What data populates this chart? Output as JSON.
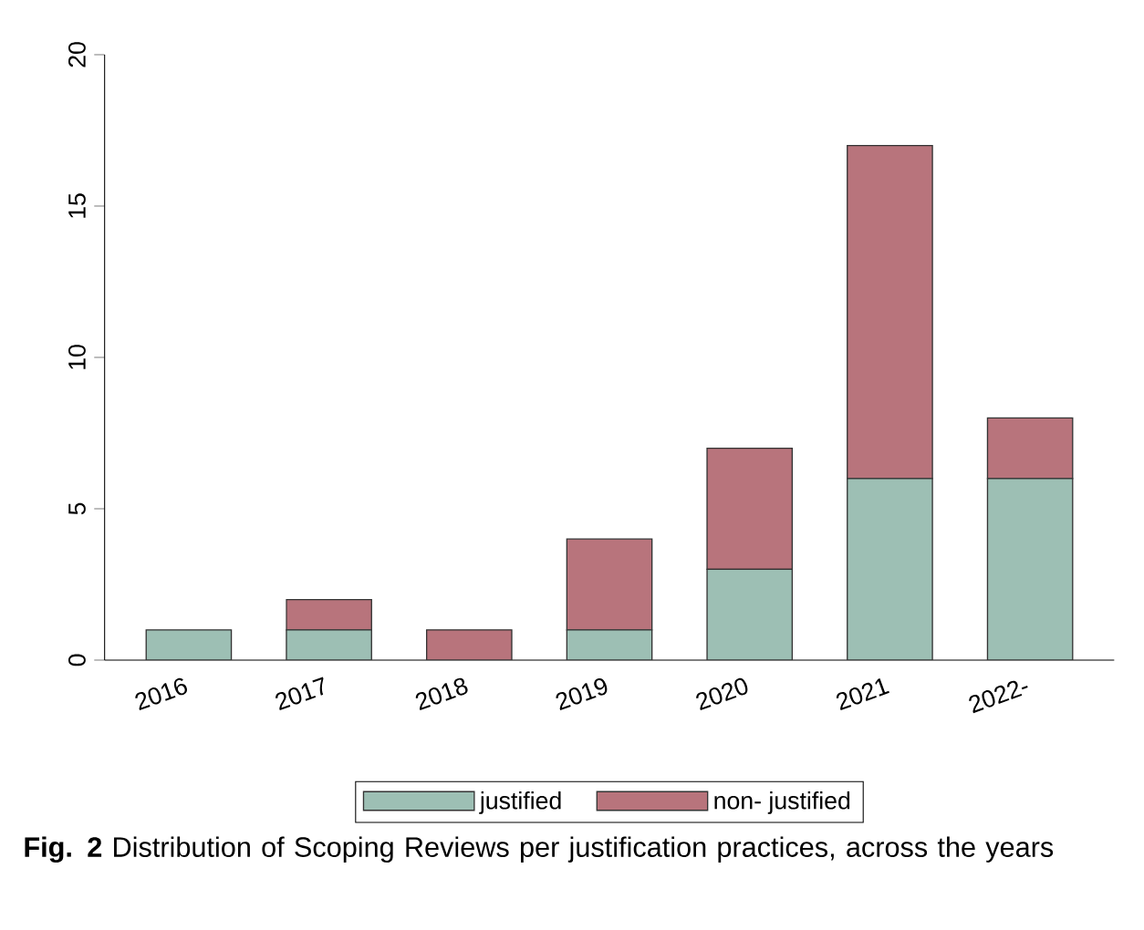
{
  "chart_data": {
    "type": "bar",
    "stacked": true,
    "categories": [
      "2016",
      "2017",
      "2018",
      "2019",
      "2020",
      "2021",
      "2022-"
    ],
    "series": [
      {
        "name": "justified",
        "color": "#9dbfb4",
        "values": [
          1,
          1,
          0,
          1,
          3,
          6,
          6
        ]
      },
      {
        "name": "non- justified",
        "color": "#b8747c",
        "values": [
          0,
          1,
          1,
          3,
          4,
          11,
          2
        ]
      }
    ],
    "ylim": [
      0,
      20
    ],
    "yticks": [
      0,
      5,
      10,
      15,
      20
    ],
    "legend": "bottom",
    "annotations": [
      "**Fig. 2** Distribution of Scoping Reviews per justification practices, across the years"
    ]
  }
}
